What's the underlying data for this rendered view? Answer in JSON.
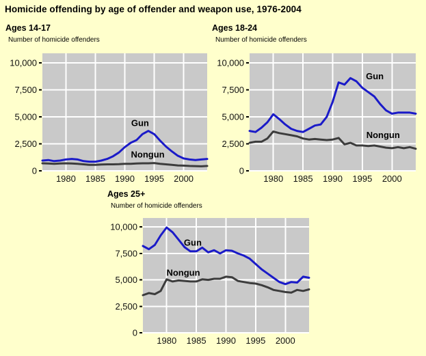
{
  "page": {
    "title": "Homicide offending by age of offender and weapon use, 1976-2004",
    "background_color": "#ffffcc"
  },
  "colors": {
    "plot_background": "#c9c9c9",
    "gridline": "#ffffff",
    "gun_line": "#1a1ac8",
    "nongun_line": "#3c3c3c",
    "text": "#000000"
  },
  "chart_data": [
    {
      "type": "line",
      "title": "Ages 14-17",
      "ylabel": "Number of homicide offenders",
      "xlim": [
        1976,
        2004
      ],
      "ylim": [
        0,
        10900
      ],
      "grid": true,
      "xticks": [
        1980,
        1985,
        1990,
        1995,
        2000
      ],
      "xtick_labels": [
        "1980",
        "1985",
        "1990",
        "1995",
        "2000"
      ],
      "yticks": [
        0,
        2500,
        5000,
        7500,
        10000
      ],
      "ytick_labels": [
        "0",
        "2,500",
        "5,000",
        "7,500",
        "10,000"
      ],
      "x": [
        1976,
        1977,
        1978,
        1979,
        1980,
        1981,
        1982,
        1983,
        1984,
        1985,
        1986,
        1987,
        1988,
        1989,
        1990,
        1991,
        1992,
        1993,
        1994,
        1995,
        1996,
        1997,
        1998,
        1999,
        2000,
        2001,
        2002,
        2003,
        2004
      ],
      "series": [
        {
          "name": "Gun",
          "color": "#1a1ac8",
          "values": [
            950,
            1000,
            900,
            950,
            1050,
            1100,
            1050,
            900,
            850,
            850,
            950,
            1100,
            1350,
            1700,
            2200,
            2600,
            2850,
            3400,
            3700,
            3400,
            2800,
            2250,
            1800,
            1400,
            1150,
            1050,
            1000,
            1050,
            1100
          ]
        },
        {
          "name": "Nongun",
          "color": "#3c3c3c",
          "values": [
            700,
            680,
            650,
            680,
            700,
            680,
            650,
            600,
            550,
            550,
            580,
            600,
            600,
            620,
            650,
            650,
            680,
            700,
            700,
            720,
            650,
            600,
            550,
            500,
            480,
            450,
            440,
            420,
            450
          ]
        }
      ],
      "annotations": [
        {
          "text": "Gun",
          "year": 1992.6,
          "value": 4400
        },
        {
          "text": "Nongun",
          "year": 1993.9,
          "value": 1500
        }
      ]
    },
    {
      "type": "line",
      "title": "Ages 18-24",
      "ylabel": "Number of homicide offenders",
      "xlim": [
        1976,
        2004
      ],
      "ylim": [
        0,
        10900
      ],
      "grid": true,
      "xticks": [
        1980,
        1985,
        1990,
        1995,
        2000
      ],
      "xtick_labels": [
        "1980",
        "1985",
        "1990",
        "1995",
        "2000"
      ],
      "yticks": [
        0,
        2500,
        5000,
        7500,
        10000
      ],
      "ytick_labels": [
        "0",
        "2,500",
        "5,000",
        "7,500",
        "10,000"
      ],
      "x": [
        1976,
        1977,
        1978,
        1979,
        1980,
        1981,
        1982,
        1983,
        1984,
        1985,
        1986,
        1987,
        1988,
        1989,
        1990,
        1991,
        1992,
        1993,
        1994,
        1995,
        1996,
        1997,
        1998,
        1999,
        2000,
        2001,
        2002,
        2003,
        2004
      ],
      "series": [
        {
          "name": "Gun",
          "color": "#1a1ac8",
          "values": [
            3700,
            3600,
            4000,
            4500,
            5250,
            4800,
            4300,
            3900,
            3700,
            3600,
            3900,
            4200,
            4300,
            5000,
            6400,
            8200,
            8000,
            8600,
            8300,
            7700,
            7300,
            6900,
            6200,
            5600,
            5300,
            5400,
            5400,
            5400,
            5300
          ]
        },
        {
          "name": "Nongun",
          "color": "#3c3c3c",
          "values": [
            2600,
            2700,
            2700,
            3000,
            3650,
            3500,
            3400,
            3300,
            3200,
            3000,
            2900,
            2950,
            2900,
            2850,
            2900,
            3050,
            2450,
            2600,
            2350,
            2350,
            2300,
            2350,
            2250,
            2150,
            2100,
            2200,
            2100,
            2200,
            2050
          ]
        }
      ],
      "annotations": [
        {
          "text": "Gun",
          "year": 1997.1,
          "value": 8750
        },
        {
          "text": "Nongun",
          "year": 1998.5,
          "value": 3300
        }
      ]
    },
    {
      "type": "line",
      "title": "Ages 25+",
      "ylabel": "Number of homicide offenders",
      "xlim": [
        1976,
        2004
      ],
      "ylim": [
        0,
        10850
      ],
      "grid": true,
      "xticks": [
        1980,
        1985,
        1990,
        1995,
        2000
      ],
      "xtick_labels": [
        "1980",
        "1985",
        "1990",
        "1995",
        "2000"
      ],
      "yticks": [
        0,
        2500,
        5000,
        7500,
        10000
      ],
      "ytick_labels": [
        "0",
        "2,500",
        "5,000",
        "7,500",
        "10,000"
      ],
      "x": [
        1976,
        1977,
        1978,
        1979,
        1980,
        1981,
        1982,
        1983,
        1984,
        1985,
        1986,
        1987,
        1988,
        1989,
        1990,
        1991,
        1992,
        1993,
        1994,
        1995,
        1996,
        1997,
        1998,
        1999,
        2000,
        2001,
        2002,
        2003,
        2004
      ],
      "series": [
        {
          "name": "Gun",
          "color": "#1a1ac8",
          "values": [
            8200,
            7900,
            8300,
            9200,
            9950,
            9500,
            8800,
            8100,
            7700,
            7700,
            8050,
            7600,
            7800,
            7500,
            7800,
            7750,
            7500,
            7300,
            7000,
            6500,
            6000,
            5600,
            5200,
            4800,
            4600,
            4800,
            4750,
            5300,
            5200
          ]
        },
        {
          "name": "Nongun",
          "color": "#3c3c3c",
          "values": [
            3550,
            3750,
            3650,
            3950,
            5050,
            4850,
            4950,
            4900,
            4850,
            4850,
            5050,
            5000,
            5100,
            5100,
            5300,
            5250,
            4900,
            4800,
            4700,
            4650,
            4500,
            4300,
            4050,
            3950,
            3850,
            3800,
            4050,
            3950,
            4100
          ]
        }
      ],
      "annotations": [
        {
          "text": "Gun",
          "year": 1984.4,
          "value": 8500
        },
        {
          "text": "Nongun",
          "year": 1982.8,
          "value": 5650
        }
      ]
    }
  ]
}
